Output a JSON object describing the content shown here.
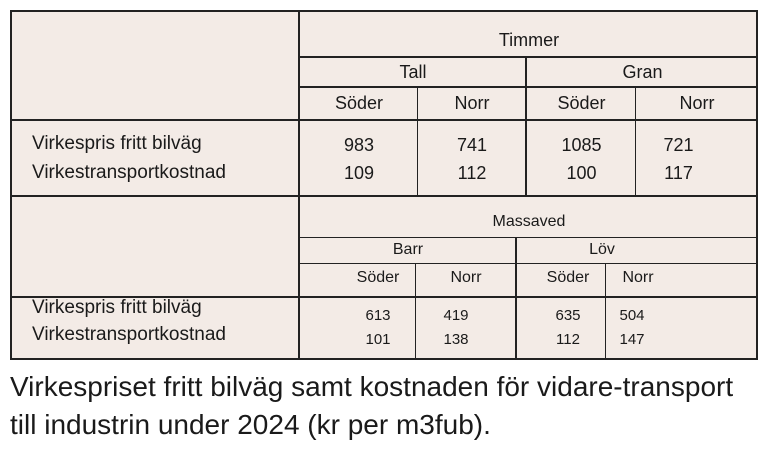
{
  "timmer": {
    "group": "Timmer",
    "species": [
      "Tall",
      "Gran"
    ],
    "regions": [
      "Söder",
      "Norr",
      "Söder",
      "Norr"
    ],
    "rows": [
      {
        "label": "Virkespris fritt bilväg",
        "values": [
          "983",
          "741",
          "1085",
          "721"
        ]
      },
      {
        "label": "Virkestransportkostnad",
        "values": [
          "109",
          "112",
          "100",
          "117"
        ]
      }
    ]
  },
  "massaved": {
    "group": "Massaved",
    "species": [
      "Barr",
      "Löv"
    ],
    "regions": [
      "Söder",
      "Norr",
      "Söder",
      "Norr"
    ],
    "rows": [
      {
        "label": "Virkespris fritt bilväg",
        "values": [
          "613",
          "419",
          "635",
          "504"
        ]
      },
      {
        "label": "Virkestransportkostnad",
        "values": [
          "101",
          "138",
          "112",
          "147"
        ]
      }
    ]
  },
  "caption": "Virkespriset fritt bilväg samt kostnaden för vidare-transport till industrin under 2024 (kr per m3fub).",
  "colors": {
    "table_bg": "#f3ebe6",
    "lines": "#222222"
  }
}
